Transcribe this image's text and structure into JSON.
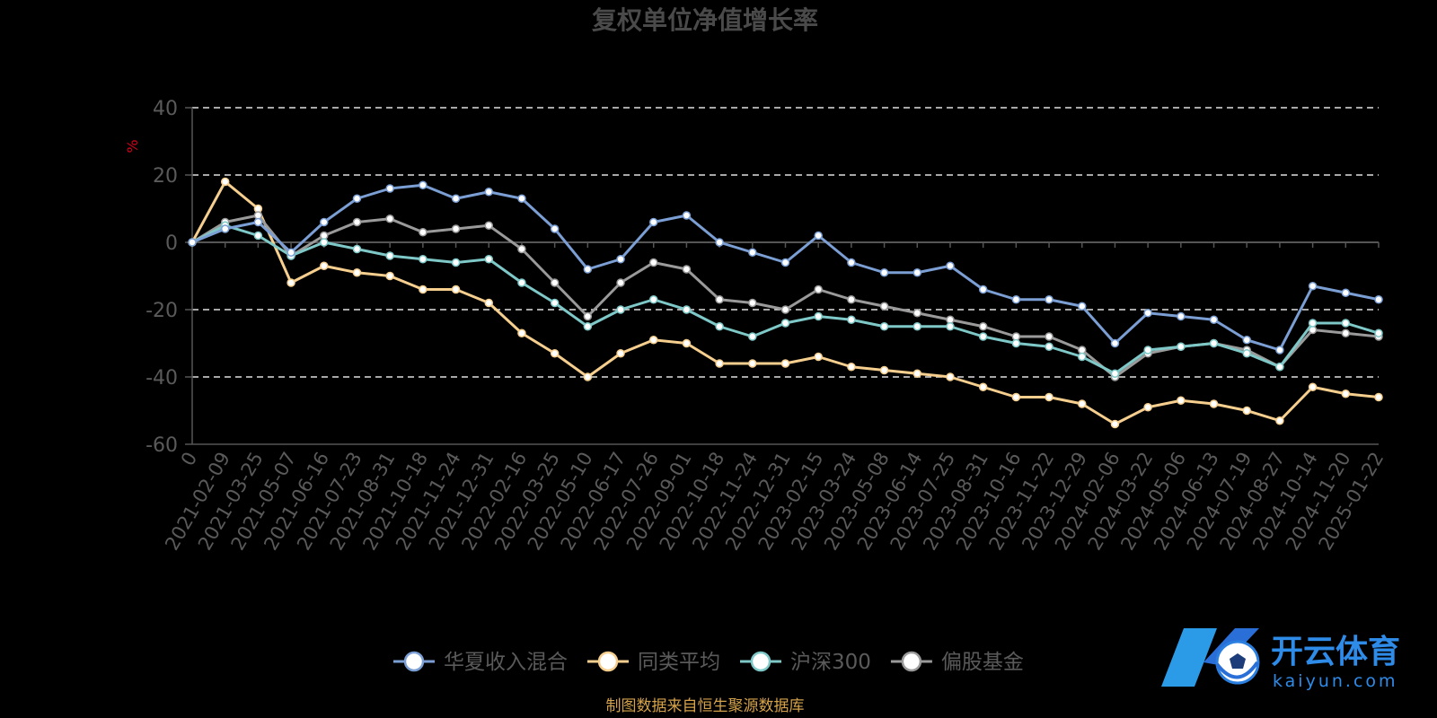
{
  "chart_data": {
    "type": "line",
    "title": "复权单位净值增长率",
    "ylabel": "%",
    "ylim": [
      -60,
      40
    ],
    "yticks": [
      40,
      20,
      0,
      -20,
      -40,
      -60
    ],
    "grid": true,
    "legend_position": "bottom",
    "x_ticks": [
      "0",
      "2021-02-09",
      "2021-03-25",
      "2021-05-07",
      "2021-06-16",
      "2021-07-23",
      "2021-08-31",
      "2021-10-18",
      "2021-11-24",
      "2021-12-31",
      "2022-02-16",
      "2022-03-25",
      "2022-05-10",
      "2022-06-17",
      "2022-07-26",
      "2022-09-01",
      "2022-10-18",
      "2022-11-24",
      "2022-12-31",
      "2023-02-15",
      "2023-03-24",
      "2023-05-08",
      "2023-06-14",
      "2023-07-25",
      "2023-08-31",
      "2023-10-16",
      "2023-11-22",
      "2023-12-29",
      "2024-02-06",
      "2024-03-22",
      "2024-05-06",
      "2024-06-13",
      "2024-07-19",
      "2024-08-27",
      "2024-10-14",
      "2024-11-20",
      "2025-01-22"
    ],
    "series": [
      {
        "name": "华夏收入混合",
        "color": "#7b9fd4",
        "values": [
          0,
          4,
          6,
          -3,
          6,
          13,
          16,
          17,
          13,
          15,
          13,
          4,
          -8,
          -5,
          6,
          8,
          0,
          -3,
          -6,
          2,
          -6,
          -9,
          -9,
          -7,
          -14,
          -17,
          -17,
          -19,
          -30,
          -21,
          -22,
          -23,
          -29,
          -32,
          -13,
          -15,
          -17
        ]
      },
      {
        "name": "同类平均",
        "color": "#f6cf8f",
        "values": [
          0,
          18,
          10,
          -12,
          -7,
          -9,
          -10,
          -14,
          -14,
          -18,
          -27,
          -33,
          -40,
          -33,
          -29,
          -30,
          -36,
          -36,
          -36,
          -34,
          -37,
          -38,
          -39,
          -40,
          -43,
          -46,
          -46,
          -48,
          -54,
          -49,
          -47,
          -48,
          -50,
          -53,
          -43,
          -45,
          -46
        ]
      },
      {
        "name": "沪深300",
        "color": "#7fc8c8",
        "values": [
          0,
          5,
          2,
          -4,
          0,
          -2,
          -4,
          -5,
          -6,
          -5,
          -12,
          -18,
          -25,
          -20,
          -17,
          -20,
          -25,
          -28,
          -24,
          -22,
          -23,
          -25,
          -25,
          -25,
          -28,
          -30,
          -31,
          -34,
          -39,
          -32,
          -31,
          -30,
          -33,
          -37,
          -24,
          -24,
          -27
        ]
      },
      {
        "name": "偏股基金",
        "color": "#9a9a9a",
        "values": [
          0,
          6,
          8,
          -4,
          2,
          6,
          7,
          3,
          4,
          5,
          -2,
          -12,
          -22,
          -12,
          -6,
          -8,
          -17,
          -18,
          -20,
          -14,
          -17,
          -19,
          -21,
          -23,
          -25,
          -28,
          -28,
          -32,
          -40,
          -33,
          -31,
          -30,
          -32,
          -37,
          -26,
          -27,
          -28
        ]
      }
    ],
    "source_note": "制图数据来自恒生聚源数据库"
  },
  "legend_icon": "circle-marker-icon",
  "logo": {
    "icon": "ball-logo-icon",
    "brand": "开云体育",
    "domain": "kaiyun.com"
  }
}
